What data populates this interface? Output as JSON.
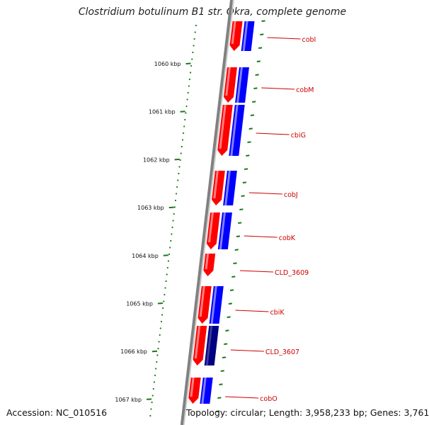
{
  "title": "Clostridium botulinum B1 str. Okra, complete genome",
  "accession": "Accession: NC_010516",
  "topology": "Topology: circular; Length: 3,958,233 bp; Genes: 3,761",
  "kbp_labels": [
    "1060 kbp",
    "1061 kbp",
    "1062 kbp",
    "1063 kbp",
    "1064 kbp",
    "1065 kbp",
    "1066 kbp",
    "1067 kbp"
  ],
  "genes": [
    {
      "name": "cobI",
      "has_blue": true,
      "blue_dark": false
    },
    {
      "name": "cobM",
      "has_blue": true,
      "blue_dark": false
    },
    {
      "name": "cbiG",
      "has_blue": true,
      "blue_dark": false
    },
    {
      "name": "cobJ",
      "has_blue": true,
      "blue_dark": false
    },
    {
      "name": "cobK",
      "has_blue": true,
      "blue_dark": false
    },
    {
      "name": "CLD_3609",
      "has_blue": false,
      "blue_dark": false
    },
    {
      "name": "cbiK",
      "has_blue": true,
      "blue_dark": false
    },
    {
      "name": "CLD_3607",
      "has_blue": true,
      "blue_dark": true
    },
    {
      "name": "cobO",
      "has_blue": true,
      "blue_dark": false
    }
  ],
  "colors": {
    "forward_strand": "#ff0000",
    "blast_hit": "#0000ff",
    "blast_hit_strong": "#000080",
    "backbone": "#808080",
    "ticks": "#1a7a1a",
    "label_text": "#cc0000"
  }
}
